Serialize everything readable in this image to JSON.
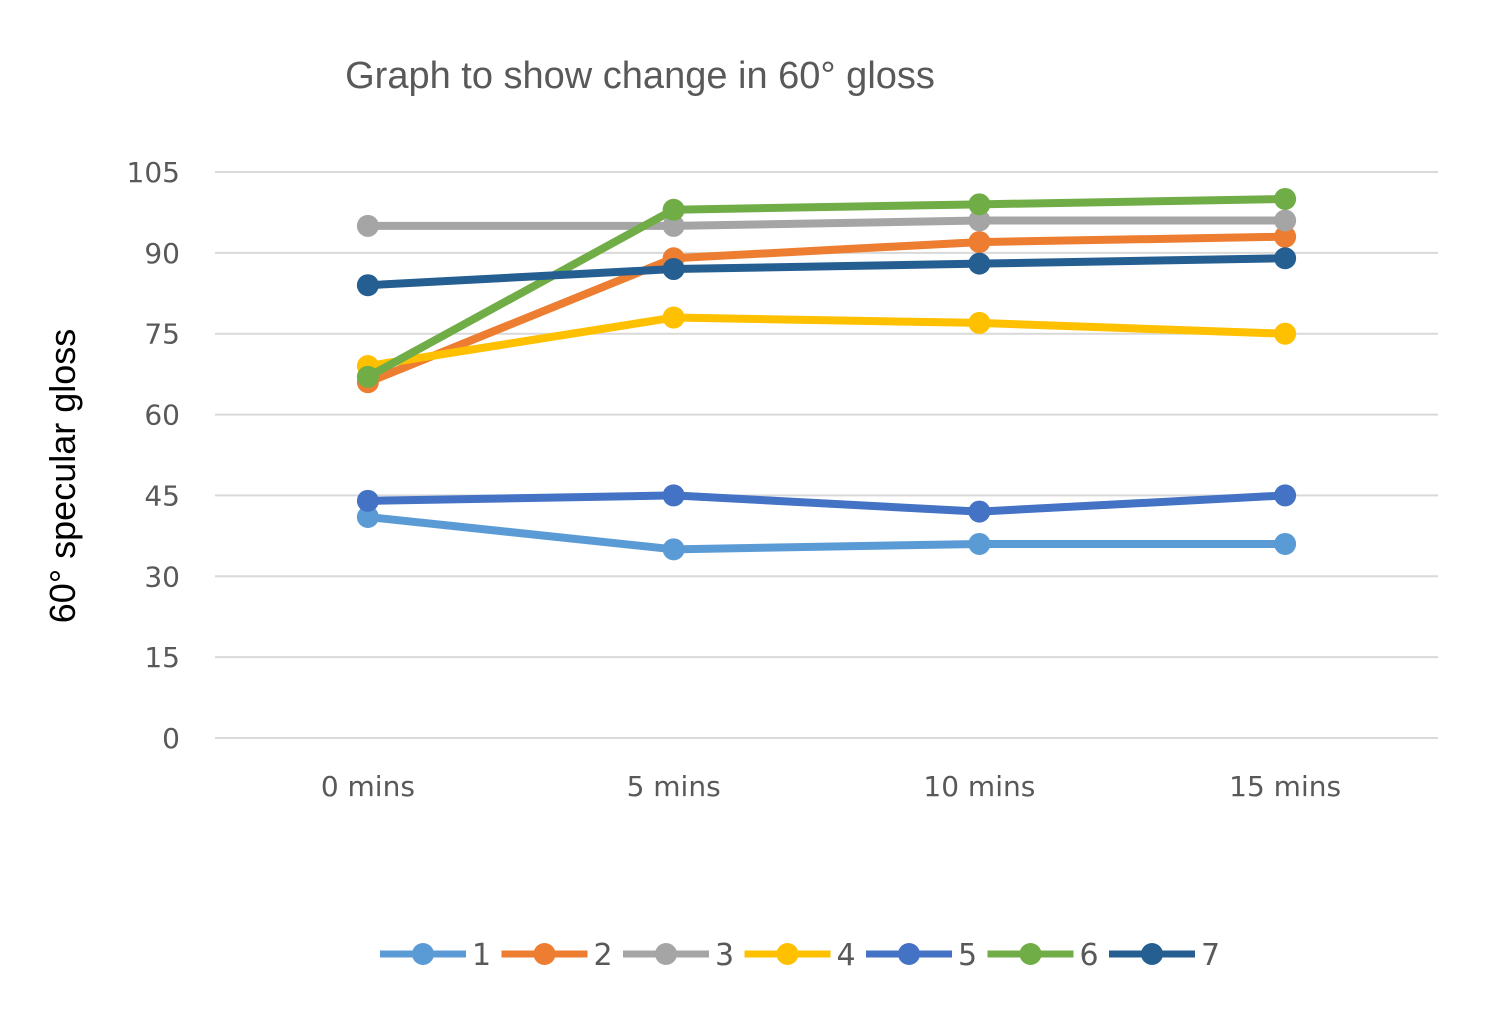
{
  "chart_data": {
    "type": "line",
    "title": "Graph to show change in 60° gloss",
    "xlabel": "",
    "ylabel": "60° specular gloss",
    "categories": [
      "0 mins",
      "5 mins",
      "10 mins",
      "15 mins"
    ],
    "ylim": [
      0,
      105
    ],
    "yticks": [
      0,
      15,
      30,
      45,
      60,
      75,
      90,
      105
    ],
    "grid": true,
    "legend_position": "bottom",
    "series": [
      {
        "name": "1",
        "color": "#5B9BD5",
        "values": [
          41,
          35,
          36,
          36
        ]
      },
      {
        "name": "2",
        "color": "#ED7D31",
        "values": [
          66,
          89,
          92,
          93
        ]
      },
      {
        "name": "3",
        "color": "#A5A5A5",
        "values": [
          95,
          95,
          96,
          96
        ]
      },
      {
        "name": "4",
        "color": "#FFC000",
        "values": [
          69,
          78,
          77,
          75
        ]
      },
      {
        "name": "5",
        "color": "#4472C4",
        "values": [
          44,
          45,
          42,
          45
        ]
      },
      {
        "name": "6",
        "color": "#70AD47",
        "values": [
          67,
          98,
          99,
          100
        ]
      },
      {
        "name": "7",
        "color": "#255E91",
        "values": [
          84,
          87,
          88,
          89
        ]
      }
    ]
  }
}
